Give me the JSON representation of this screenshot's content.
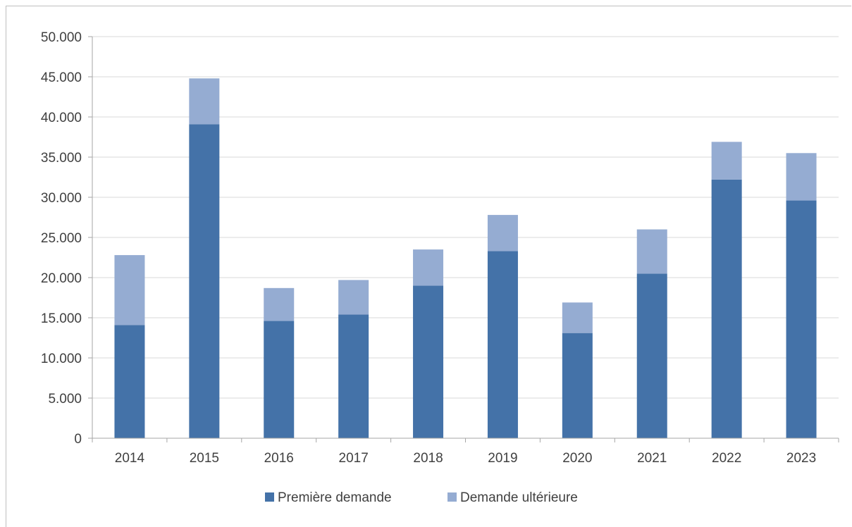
{
  "chart_data": {
    "type": "bar",
    "stacked": true,
    "categories": [
      "2014",
      "2015",
      "2016",
      "2017",
      "2018",
      "2019",
      "2020",
      "2021",
      "2022",
      "2023"
    ],
    "series": [
      {
        "name": "Première demande",
        "color": "#4472a8",
        "values": [
          14100,
          39100,
          14600,
          15400,
          19000,
          23300,
          13100,
          20500,
          32200,
          29600
        ]
      },
      {
        "name": "Demande ultérieure",
        "color": "#95acd2",
        "values": [
          8700,
          5700,
          4100,
          4300,
          4500,
          4500,
          3800,
          5500,
          4700,
          5900
        ]
      }
    ],
    "y_ticks": [
      "0",
      "5.000",
      "10.000",
      "15.000",
      "20.000",
      "25.000",
      "30.000",
      "35.000",
      "40.000",
      "45.000",
      "50.000"
    ],
    "ylim": [
      0,
      50000
    ],
    "grid": true,
    "legend_position": "bottom"
  }
}
